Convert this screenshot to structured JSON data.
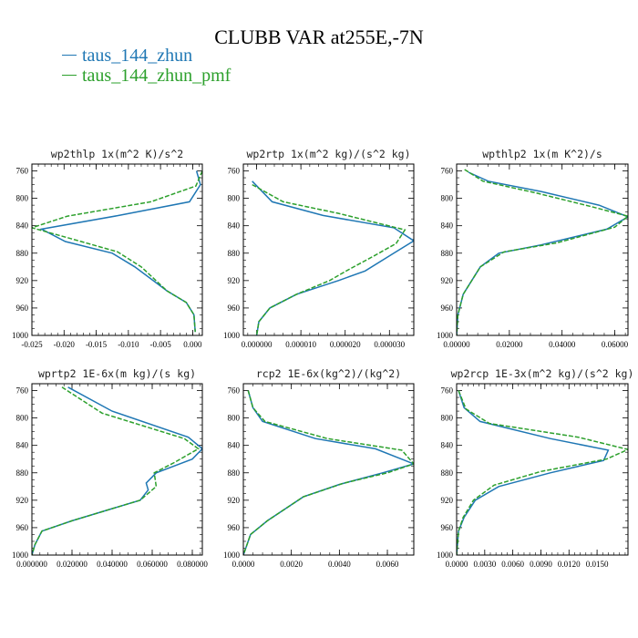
{
  "title": "CLUBB VAR at255E,-7N",
  "legend": [
    {
      "label": "taus_144_zhun",
      "color": "#1f77b4",
      "style": "solid"
    },
    {
      "label": "taus_144_zhun_pmf",
      "color": "#2ca02c",
      "style": "dashed"
    }
  ],
  "chart_data": [
    {
      "type": "line",
      "title": "wp2thlp  1x(m^2 K)/s^2",
      "xlim": [
        -0.025,
        0.0015
      ],
      "ylim": [
        1000,
        750
      ],
      "xticks": [
        -0.025,
        -0.02,
        -0.015,
        -0.01,
        -0.005,
        0
      ],
      "xtick_labels": [
        "-0.025",
        "-0.020",
        "-0.015",
        "-0.010",
        "-0.005",
        "0.000"
      ],
      "yticks": [
        760,
        800,
        840,
        880,
        920,
        960,
        1000
      ],
      "series": [
        {
          "name": "taus_144_zhun",
          "x": [
            0.0006,
            0.0012,
            -0.0005,
            -0.0115,
            -0.0235,
            -0.0198,
            -0.0125,
            -0.009,
            -0.004,
            -0.001,
            0.0002,
            0.0004
          ],
          "y": [
            760,
            780,
            805,
            825,
            845,
            863,
            880,
            900,
            935,
            952,
            970,
            995
          ]
        },
        {
          "name": "taus_144_zhun_pmf",
          "x": [
            0.0015,
            0.0005,
            -0.0065,
            -0.0195,
            -0.025,
            -0.0185,
            -0.0117,
            -0.008,
            -0.004,
            -0.001,
            0.0002,
            0.0004
          ],
          "y": [
            760,
            782,
            805,
            826,
            843,
            860,
            878,
            900,
            935,
            952,
            970,
            995
          ]
        }
      ]
    },
    {
      "type": "line",
      "title": "wp2rtp  1x(m^2 kg)/(s^2 kg)",
      "xlim": [
        -3e-06,
        3.55e-05
      ],
      "ylim": [
        1000,
        750
      ],
      "xticks": [
        0,
        1e-05,
        2e-05,
        3e-05
      ],
      "xtick_labels": [
        "0.000000",
        "0.000010",
        "0.000020",
        "0.000030"
      ],
      "yticks": [
        760,
        800,
        840,
        880,
        920,
        960,
        1000
      ],
      "series": [
        {
          "name": "taus_144_zhun",
          "x": [
            -1e-06,
            3.5e-06,
            1.5e-05,
            3.1e-05,
            3.55e-05,
            3.1e-05,
            2.45e-05,
            1.85e-05,
            9e-06,
            3e-06,
            5e-07,
            0.0
          ],
          "y": [
            775,
            805,
            825,
            843,
            862,
            880,
            906,
            920,
            940,
            960,
            980,
            1000
          ]
        },
        {
          "name": "taus_144_zhun_pmf",
          "x": [
            -1e-06,
            6e-06,
            1.85e-05,
            3.35e-05,
            3.15e-05,
            2.65e-05,
            2.05e-05,
            1.65e-05,
            9e-06,
            3e-06,
            5e-07,
            0.0
          ],
          "y": [
            780,
            805,
            822,
            846,
            866,
            884,
            905,
            920,
            940,
            960,
            980,
            1000
          ]
        }
      ]
    },
    {
      "type": "line",
      "title": "wpthlp2  1x(m K^2)/s",
      "xlim": [
        0,
        0.065
      ],
      "ylim": [
        1000,
        750
      ],
      "xticks": [
        0,
        0.02,
        0.04,
        0.06
      ],
      "xtick_labels": [
        "0.00000",
        "0.02000",
        "0.04000",
        "0.06000"
      ],
      "yticks": [
        760,
        800,
        840,
        880,
        920,
        960,
        1000
      ],
      "series": [
        {
          "name": "taus_144_zhun",
          "x": [
            0.0045,
            0.012,
            0.032,
            0.054,
            0.065,
            0.057,
            0.032,
            0.016,
            0.009,
            0.0025,
            0.0005,
            0.0
          ],
          "y": [
            762,
            775,
            790,
            810,
            827,
            845,
            868,
            880,
            900,
            940,
            970,
            1000
          ]
        },
        {
          "name": "taus_144_zhun_pmf",
          "x": [
            0.003,
            0.01,
            0.03,
            0.051,
            0.065,
            0.06,
            0.038,
            0.018,
            0.009,
            0.0025,
            0.0005,
            0.0
          ],
          "y": [
            758,
            775,
            792,
            812,
            826,
            842,
            865,
            878,
            900,
            940,
            970,
            1000
          ]
        }
      ]
    },
    {
      "type": "line",
      "title": "wprtp2  1E-6x(m kg)/(s kg)",
      "xlim": [
        0,
        0.085
      ],
      "ylim": [
        1000,
        750
      ],
      "xticks": [
        0,
        0.02,
        0.04,
        0.06,
        0.08
      ],
      "xtick_labels": [
        "0.000000",
        "0.020000",
        "0.040000",
        "0.060000",
        "0.080000"
      ],
      "yticks": [
        760,
        800,
        840,
        880,
        920,
        960,
        1000
      ],
      "series": [
        {
          "name": "taus_144_zhun",
          "x": [
            0.018,
            0.04,
            0.078,
            0.085,
            0.08,
            0.062,
            0.057,
            0.058,
            0.054,
            0.02,
            0.005,
            0.0015,
            0.0
          ],
          "y": [
            755,
            790,
            828,
            845,
            860,
            880,
            895,
            905,
            920,
            950,
            965,
            985,
            1000
          ]
        },
        {
          "name": "taus_144_zhun_pmf",
          "x": [
            0.015,
            0.035,
            0.076,
            0.083,
            0.071,
            0.061,
            0.062,
            0.054,
            0.02,
            0.005,
            0.0015,
            0.0
          ],
          "y": [
            755,
            793,
            830,
            845,
            865,
            880,
            900,
            920,
            950,
            965,
            985,
            1000
          ]
        }
      ]
    },
    {
      "type": "line",
      "title": "rcp2  1E-6x(kg^2)/(kg^2)",
      "xlim": [
        0,
        0.0071
      ],
      "ylim": [
        1000,
        750
      ],
      "xticks": [
        0,
        0.002,
        0.004,
        0.006
      ],
      "xtick_labels": [
        "0.0000",
        "0.0020",
        "0.0040",
        "0.0060"
      ],
      "yticks": [
        760,
        800,
        840,
        880,
        920,
        960,
        1000
      ],
      "series": [
        {
          "name": "taus_144_zhun",
          "x": [
            0.0002,
            0.0004,
            0.0008,
            0.003,
            0.0055,
            0.0071,
            0.0058,
            0.004,
            0.0025,
            0.001,
            0.0003,
            0.0
          ],
          "y": [
            760,
            785,
            805,
            830,
            845,
            867,
            880,
            897,
            915,
            950,
            970,
            1000
          ]
        },
        {
          "name": "taus_144_zhun_pmf",
          "x": [
            0.0002,
            0.0004,
            0.0009,
            0.0035,
            0.0066,
            0.0071,
            0.006,
            0.0042,
            0.0025,
            0.001,
            0.0003,
            0.0
          ],
          "y": [
            760,
            785,
            805,
            830,
            847,
            867,
            880,
            895,
            915,
            950,
            970,
            1000
          ]
        }
      ]
    },
    {
      "type": "line",
      "title": "wp2rcp  1E-3x(m^2 kg)/(s^2 kg)",
      "xlim": [
        0,
        0.0183
      ],
      "ylim": [
        1000,
        750
      ],
      "xticks": [
        0,
        0.003,
        0.006,
        0.009,
        0.012,
        0.015
      ],
      "xtick_labels": [
        "0.0000",
        "0.0030",
        "0.0060",
        "0.0090",
        "0.0120",
        "0.0150"
      ],
      "yticks": [
        760,
        800,
        840,
        880,
        920,
        960,
        1000
      ],
      "series": [
        {
          "name": "taus_144_zhun",
          "x": [
            0.0002,
            0.0008,
            0.0025,
            0.01,
            0.0162,
            0.0157,
            0.01,
            0.0045,
            0.002,
            0.0008,
            0.0002,
            0.0
          ],
          "y": [
            760,
            785,
            805,
            830,
            847,
            862,
            880,
            900,
            920,
            945,
            965,
            1000
          ]
        },
        {
          "name": "taus_144_zhun_pmf",
          "x": [
            0.0002,
            0.001,
            0.0035,
            0.013,
            0.0183,
            0.016,
            0.009,
            0.004,
            0.0018,
            0.0007,
            0.0002,
            0.0
          ],
          "y": [
            760,
            787,
            808,
            828,
            846,
            860,
            878,
            898,
            920,
            945,
            965,
            1000
          ]
        }
      ]
    }
  ]
}
